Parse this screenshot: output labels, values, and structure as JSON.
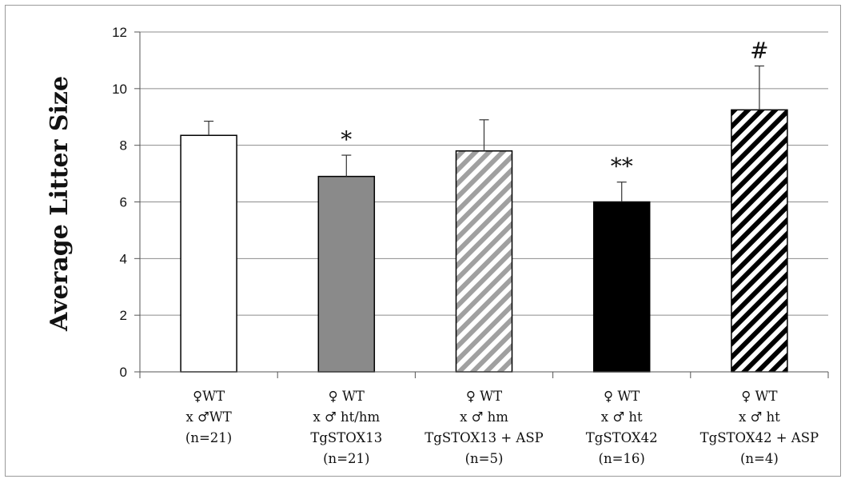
{
  "chart_data": {
    "type": "bar",
    "title": "",
    "xlabel": "",
    "ylabel": "Average Litter Size",
    "ylim": [
      0,
      12
    ],
    "yticks": [
      0,
      2,
      4,
      6,
      8,
      10,
      12
    ],
    "grid": true,
    "categories": [
      {
        "lines": [
          "♀WT",
          "x ♂WT",
          "(n=21)"
        ]
      },
      {
        "lines": [
          "♀ WT",
          "x ♂ ht/hm",
          "TgSTOX13",
          "(n=21)"
        ]
      },
      {
        "lines": [
          "♀ WT",
          "x ♂ hm",
          "TgSTOX13 + ASP",
          "(n=5)"
        ]
      },
      {
        "lines": [
          "♀ WT",
          "x ♂ ht",
          "TgSTOX42",
          "(n=16)"
        ]
      },
      {
        "lines": [
          "♀ WT",
          "x ♂ ht",
          "TgSTOX42 + ASP",
          "(n=4)"
        ]
      }
    ],
    "values": [
      8.35,
      6.9,
      7.8,
      6.0,
      9.25
    ],
    "errors": [
      0.5,
      0.75,
      1.1,
      0.7,
      1.55
    ],
    "annotations": [
      "",
      "*",
      "",
      "**",
      "#"
    ],
    "fills": [
      {
        "type": "solid",
        "color": "#ffffff"
      },
      {
        "type": "solid",
        "color": "#8a8a8a"
      },
      {
        "type": "hatch",
        "color": "#a0a0a0"
      },
      {
        "type": "solid",
        "color": "#000000"
      },
      {
        "type": "hatch",
        "color": "#000000"
      }
    ]
  }
}
